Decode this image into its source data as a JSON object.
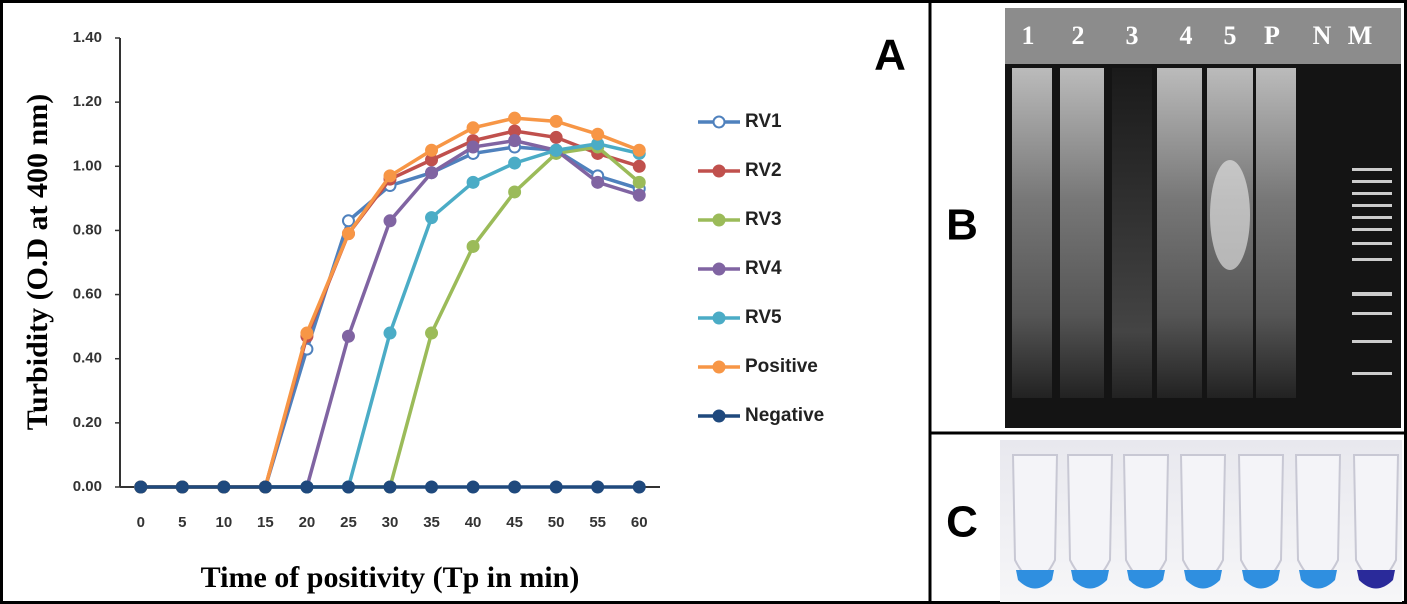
{
  "chart_data": {
    "type": "line",
    "x": [
      0,
      5,
      10,
      15,
      20,
      25,
      30,
      35,
      40,
      45,
      50,
      55,
      60
    ],
    "xlim": [
      -2.5,
      62.5
    ],
    "xticks": [
      0,
      5,
      10,
      15,
      20,
      25,
      30,
      35,
      40,
      45,
      50,
      55,
      60
    ],
    "ylim": [
      0,
      1.4
    ],
    "yticks": [
      {
        "value": 0,
        "label": "0.00"
      },
      {
        "value": 0.2,
        "label": "0.20"
      },
      {
        "value": 0.4,
        "label": "0.40"
      },
      {
        "value": 0.6,
        "label": "0.60"
      },
      {
        "value": 0.8,
        "label": "0.80"
      },
      {
        "value": 1.0,
        "label": "1.00"
      },
      {
        "value": 1.2,
        "label": "1.20"
      },
      {
        "value": 1.4,
        "label": "1.40"
      }
    ],
    "xlabel": "Time of positivity (Tp in min)",
    "ylabel": "Turbidity (O.D at 400 nm)",
    "legend": "right",
    "series": [
      {
        "name": "RV1",
        "color": "#4f81bd",
        "values": [
          0,
          0,
          0,
          0,
          0.43,
          0.83,
          0.94,
          0.98,
          1.04,
          1.06,
          1.05,
          0.97,
          0.93
        ]
      },
      {
        "name": "RV2",
        "color": "#c0504d",
        "values": [
          0,
          0,
          0,
          0,
          0.47,
          0.79,
          0.96,
          1.02,
          1.08,
          1.11,
          1.09,
          1.04,
          1.0
        ]
      },
      {
        "name": "RV3",
        "color": "#9bbb59",
        "values": [
          0,
          0,
          0,
          0,
          0,
          0,
          0,
          0.48,
          0.75,
          0.92,
          1.04,
          1.06,
          0.95
        ]
      },
      {
        "name": "RV4",
        "color": "#8064a2",
        "values": [
          0,
          0,
          0,
          0,
          0,
          0.47,
          0.83,
          0.98,
          1.06,
          1.08,
          1.05,
          0.95,
          0.91
        ]
      },
      {
        "name": "RV5",
        "color": "#4bacc6",
        "values": [
          0,
          0,
          0,
          0,
          0,
          0,
          0.48,
          0.84,
          0.95,
          1.01,
          1.05,
          1.07,
          1.04
        ]
      },
      {
        "name": "Positive",
        "color": "#f79646",
        "values": [
          0,
          0,
          0,
          0,
          0.48,
          0.79,
          0.97,
          1.05,
          1.12,
          1.15,
          1.14,
          1.1,
          1.05
        ]
      },
      {
        "name": "Negative",
        "color": "#1f497d",
        "values": [
          0,
          0,
          0,
          0,
          0,
          0,
          0,
          0,
          0,
          0,
          0,
          0,
          0
        ]
      }
    ]
  },
  "panel_labels": [
    "A",
    "B",
    "C"
  ],
  "gel_lanes": [
    "1",
    "2",
    "3",
    "4",
    "5",
    "P",
    "N",
    "M"
  ]
}
